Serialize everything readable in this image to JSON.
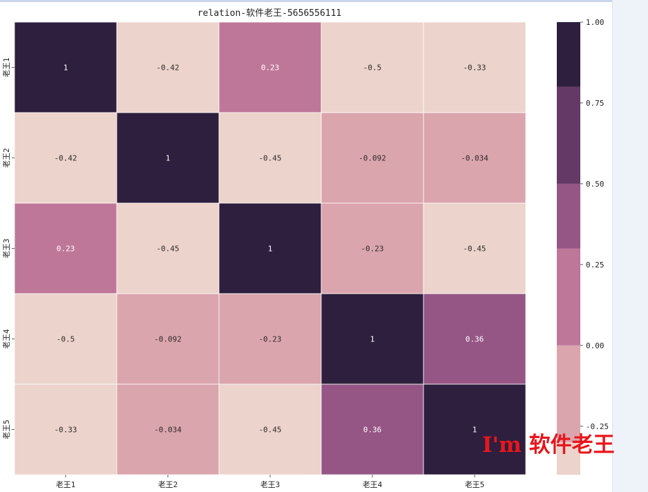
{
  "chart_data": {
    "type": "heatmap",
    "title": "relation-软件老王-5656556111",
    "x_labels": [
      "老王1",
      "老王2",
      "老王3",
      "老王4",
      "老王5"
    ],
    "y_labels": [
      "老王1",
      "老王2",
      "老王3",
      "老王4",
      "老王5"
    ],
    "values": [
      [
        1,
        -0.42,
        0.23,
        -0.5,
        -0.33
      ],
      [
        -0.42,
        1,
        -0.45,
        -0.092,
        -0.034
      ],
      [
        0.23,
        -0.45,
        1,
        -0.23,
        -0.45
      ],
      [
        -0.5,
        -0.092,
        -0.23,
        1,
        0.36
      ],
      [
        -0.33,
        -0.034,
        -0.45,
        0.36,
        1
      ]
    ],
    "annotations": [
      [
        "1",
        "-0.42",
        "0.23",
        "-0.5",
        "-0.33"
      ],
      [
        "-0.42",
        "1",
        "-0.45",
        "-0.092",
        "-0.034"
      ],
      [
        "0.23",
        "-0.45",
        "1",
        "-0.23",
        "-0.45"
      ],
      [
        "-0.5",
        "-0.092",
        "-0.23",
        "1",
        "0.36"
      ],
      [
        "-0.33",
        "-0.034",
        "-0.45",
        "0.36",
        "1"
      ]
    ],
    "colorbar": {
      "ticks": [
        "1.00",
        "0.75",
        "0.50",
        "0.25",
        "0.00",
        "-0.25"
      ],
      "range": [
        -0.4,
        1.0
      ],
      "bins": [
        {
          "from": -0.4,
          "to": -0.3,
          "color": "#ecd3cb"
        },
        {
          "from": -0.3,
          "to": 0.0,
          "color": "#dba5ad"
        },
        {
          "from": 0.0,
          "to": 0.3,
          "color": "#bf7799"
        },
        {
          "from": 0.3,
          "to": 0.5,
          "color": "#955686"
        },
        {
          "from": 0.5,
          "to": 0.8,
          "color": "#643965"
        },
        {
          "from": 0.8,
          "to": 1.0,
          "color": "#2e1f3e"
        }
      ]
    },
    "colors": {
      "grid_line": "#ffffff",
      "dark_text": "#ffffff",
      "light_text": "#2b2b2b",
      "watermark": "#e8161c"
    }
  },
  "watermark": "I'm 软件老王"
}
